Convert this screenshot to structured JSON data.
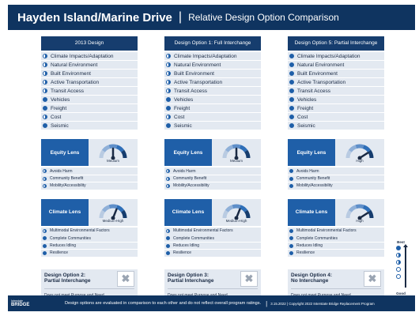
{
  "header": {
    "title": "Hayden Island/Marine Drive",
    "separator": "|",
    "subtitle": "Relative Design Option Comparison"
  },
  "criteria_labels": [
    "Climate Impacts/Adaptation",
    "Natural Environment",
    "Built Environment",
    "Active Transportation",
    "Transit Access",
    "Vehicles",
    "Freight",
    "Cost",
    "Seismic"
  ],
  "columns": [
    {
      "title": "2013 Design",
      "criteria": [
        "half",
        "half",
        "half",
        "half",
        "half",
        "full",
        "full",
        "half",
        "full"
      ],
      "equity": {
        "label": "Equity Lens",
        "gauge": "Medium",
        "level": 0.5,
        "factors": [
          "Avoids Harm",
          "Community Benefit",
          "Mobility/Accessibility"
        ],
        "ratings": [
          "half",
          "half",
          "half"
        ]
      },
      "climate": {
        "label": "Climate Lens",
        "gauge": "Medium-High",
        "level": 0.62,
        "factors": [
          "Multimodal Environmental Factors",
          "Complete Communities",
          "Reduces Idling",
          "Resilience"
        ],
        "ratings": [
          "half",
          "full",
          "full",
          "full"
        ]
      },
      "alt": {
        "title_line1": "Design Option 2:",
        "title_line2": "Partial Interchange",
        "x": "✖",
        "note": "Does not meet Purpose and Need."
      }
    },
    {
      "title": "Design Option 1: Full Interchange",
      "criteria": [
        "half",
        "half",
        "half",
        "half",
        "half",
        "full",
        "full",
        "half",
        "full"
      ],
      "equity": {
        "label": "Equity Lens",
        "gauge": "Medium",
        "level": 0.5,
        "factors": [
          "Avoids Harm",
          "Community Benefit",
          "Mobility/Accessibility"
        ],
        "ratings": [
          "half",
          "half",
          "half"
        ]
      },
      "climate": {
        "label": "Climate Lens",
        "gauge": "Medium-High",
        "level": 0.62,
        "factors": [
          "Multimodal Environmental Factors",
          "Complete Communities",
          "Reduces Idling",
          "Resilience"
        ],
        "ratings": [
          "half",
          "full",
          "full",
          "full"
        ]
      },
      "alt": {
        "title_line1": "Design Option 3:",
        "title_line2": "Partial Interchange",
        "x": "✖",
        "note": "Does not meet Purpose and Need."
      }
    },
    {
      "title": "Design Option 5: Partial Interchange",
      "criteria": [
        "full",
        "full",
        "full",
        "full",
        "full",
        "full",
        "full",
        "full",
        "full"
      ],
      "equity": {
        "label": "Equity Lens",
        "gauge": "High",
        "level": 0.82,
        "factors": [
          "Avoids Harm",
          "Community Benefit",
          "Mobility/Accessibility"
        ],
        "ratings": [
          "full",
          "full",
          "full"
        ]
      },
      "climate": {
        "label": "Climate Lens",
        "gauge": "High",
        "level": 0.82,
        "factors": [
          "Multimodal Environmental Factors",
          "Complete Communities",
          "Reduces Idling",
          "Resilience"
        ],
        "ratings": [
          "full",
          "full",
          "full",
          "full"
        ]
      },
      "alt": {
        "title_line1": "Design Option 4:",
        "title_line2": "No Interchange",
        "x": "✖",
        "note": "Does not meet Purpose and Need."
      }
    }
  ],
  "legend": {
    "best": "Best",
    "good": "Good"
  },
  "footer": {
    "logo_line1": "Interstate",
    "logo_line2": "BRIDGE",
    "note": "Design options are evaluated in comparison to each other and do not reflect overall program ratings.",
    "separator": "|",
    "copyright": "3.15.2022 | Copyright 2022 Interstate Bridge Replacement Program"
  },
  "colors": {
    "navy": "#0f3460",
    "blue": "#1f5fa8",
    "light": "#e3e9f1"
  }
}
